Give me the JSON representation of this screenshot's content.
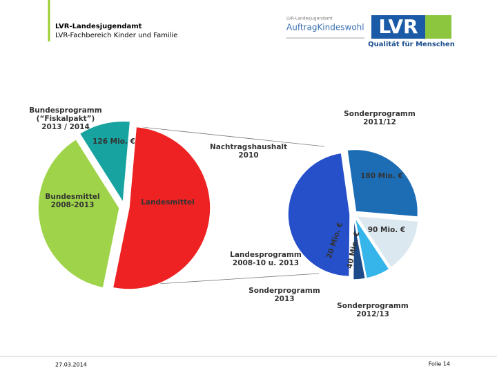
{
  "header": {
    "title": "LVR-Landesjugendamt",
    "subtitle": "LVR-Fachbereich Kinder und Familie"
  },
  "logos": {
    "small": "LVR-Landesjugendamt",
    "campaign": "AuftragKindeswohl",
    "brand": "LVR",
    "claim": "Qualität für Menschen"
  },
  "chart_data": [
    {
      "type": "pie",
      "categories": [
        "Landesmittel",
        "Bundesmittel\n2008-2013",
        "Bundesprogramm\n(“Fiskalpakt”)\n2013 / 2014"
      ],
      "values": [
        630,
        460,
        126
      ],
      "value_labels": [
        null,
        null,
        "126 Mio. €"
      ],
      "colors": [
        "#ee2222",
        "#9fd44a",
        "#17a3a0"
      ]
    },
    {
      "type": "pie",
      "categories": [
        "Sonderprogramm\n2011/12",
        "Sonderprogramm\n2012/13",
        "Sonderprogramm\n2013",
        "Landesprogramm\n2008-10 u. 2013",
        "Nachtragshaushalt\n2010"
      ],
      "values": [
        180,
        90,
        40,
        20,
        300
      ],
      "value_labels": [
        "180 Mio. €",
        "90 Mio. €",
        "40 Mio. €",
        "20 Mio. €",
        null
      ],
      "colors": [
        "#1d6db5",
        "#dce8ef",
        "#36b5ea",
        "#1d4a88",
        "#2650c9"
      ]
    }
  ],
  "footer": {
    "date": "27.03.2014",
    "slide": "Folie 14"
  }
}
